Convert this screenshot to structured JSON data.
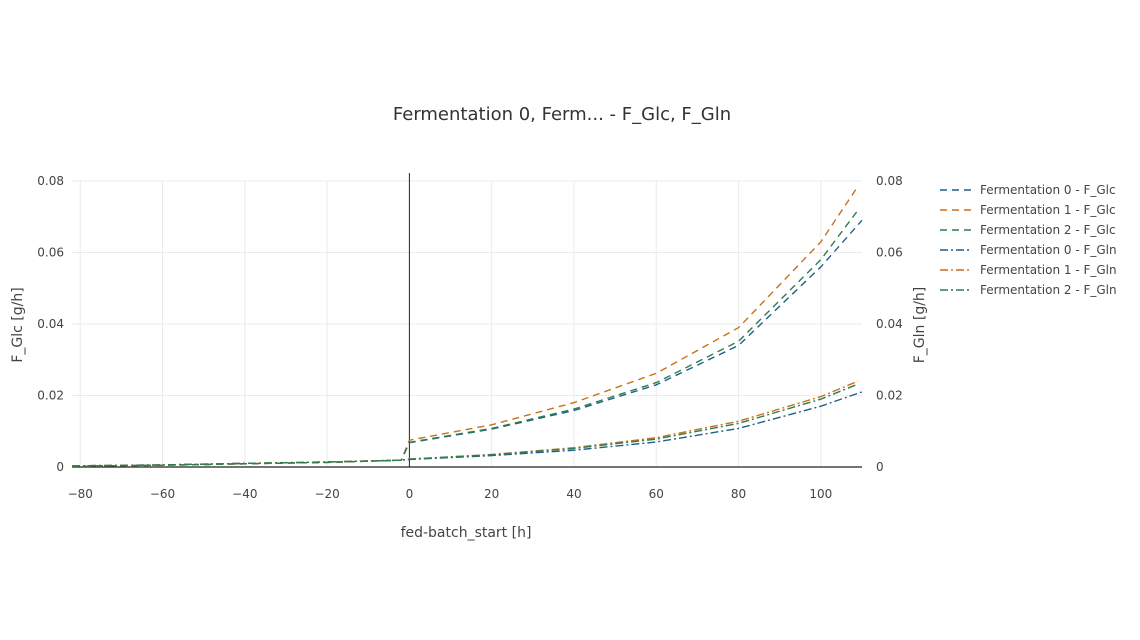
{
  "chart_data": {
    "type": "line",
    "title": "Fermentation 0, Ferm... - F_Glc, F_Gln",
    "xlabel": "fed-batch_start [h]",
    "ylabel": "F_Glc [g/h]",
    "y2label": "F_Gln [g/h]",
    "xlim": [
      -82,
      110
    ],
    "ylim": [
      0,
      0.08
    ],
    "y2lim": [
      0,
      0.08
    ],
    "x_ticks": [
      "−80",
      "−60",
      "−40",
      "−20",
      "0",
      "20",
      "40",
      "60",
      "80",
      "100"
    ],
    "x_tick_values": [
      -80,
      -60,
      -40,
      -20,
      0,
      20,
      40,
      60,
      80,
      100
    ],
    "y_ticks": [
      "0",
      "0.02",
      "0.04",
      "0.06",
      "0.08"
    ],
    "y_tick_values": [
      0,
      0.02,
      0.04,
      0.06,
      0.08
    ],
    "y2_ticks": [
      "0",
      "0.02",
      "0.04",
      "0.06",
      "0.08"
    ],
    "y2_tick_values": [
      0,
      0.02,
      0.04,
      0.06,
      0.08
    ],
    "grid": true,
    "legend_position": "right",
    "series": [
      {
        "name": "Fermentation 0 - F_Glc",
        "color": "#1f5f8b",
        "dash": "dash",
        "axis": "y",
        "x": [
          -82,
          -60,
          -40,
          -20,
          -2,
          0,
          20,
          40,
          60,
          80,
          100,
          110
        ],
        "y": [
          0.0002,
          0.0005,
          0.0009,
          0.0013,
          0.0019,
          0.0068,
          0.0106,
          0.0158,
          0.023,
          0.034,
          0.056,
          0.069
        ]
      },
      {
        "name": "Fermentation 1 - F_Glc",
        "color": "#c8711a",
        "dash": "dash",
        "axis": "y",
        "x": [
          -82,
          -60,
          -40,
          -20,
          -2,
          0,
          20,
          40,
          60,
          80,
          100,
          109
        ],
        "y": [
          0.0002,
          0.0005,
          0.0009,
          0.0013,
          0.0019,
          0.0075,
          0.0118,
          0.018,
          0.0262,
          0.039,
          0.063,
          0.0785
        ]
      },
      {
        "name": "Fermentation 2 - F_Glc",
        "color": "#2e7d4f",
        "dash": "dash",
        "axis": "y",
        "x": [
          -82,
          -60,
          -40,
          -20,
          -2,
          0,
          20,
          40,
          60,
          80,
          100,
          109
        ],
        "y": [
          0.0002,
          0.0005,
          0.0009,
          0.0013,
          0.0019,
          0.0069,
          0.0108,
          0.0162,
          0.0236,
          0.0352,
          0.058,
          0.0718
        ]
      },
      {
        "name": "Fermentation 0 - F_Gln",
        "color": "#1f5f8b",
        "dash": "dashdot",
        "axis": "y2",
        "x": [
          -82,
          -60,
          -40,
          -20,
          -2,
          0,
          20,
          40,
          60,
          80,
          100,
          110
        ],
        "y": [
          0.0003,
          0.0006,
          0.001,
          0.0014,
          0.0019,
          0.0021,
          0.0032,
          0.0047,
          0.007,
          0.0108,
          0.017,
          0.021
        ]
      },
      {
        "name": "Fermentation 1 - F_Gln",
        "color": "#c8711a",
        "dash": "dashdot",
        "axis": "y2",
        "x": [
          -82,
          -60,
          -40,
          -20,
          -2,
          0,
          20,
          40,
          60,
          80,
          100,
          109
        ],
        "y": [
          0.0003,
          0.0006,
          0.001,
          0.0014,
          0.0019,
          0.0022,
          0.0035,
          0.0054,
          0.0082,
          0.0128,
          0.0197,
          0.024
        ]
      },
      {
        "name": "Fermentation 2 - F_Gln",
        "color": "#2e7d4f",
        "dash": "dashdot",
        "axis": "y2",
        "x": [
          -82,
          -60,
          -40,
          -20,
          -2,
          0,
          20,
          40,
          60,
          80,
          100,
          109
        ],
        "y": [
          0.0003,
          0.0006,
          0.001,
          0.0014,
          0.0019,
          0.0022,
          0.0034,
          0.0052,
          0.0078,
          0.0122,
          0.019,
          0.0232
        ]
      }
    ]
  }
}
